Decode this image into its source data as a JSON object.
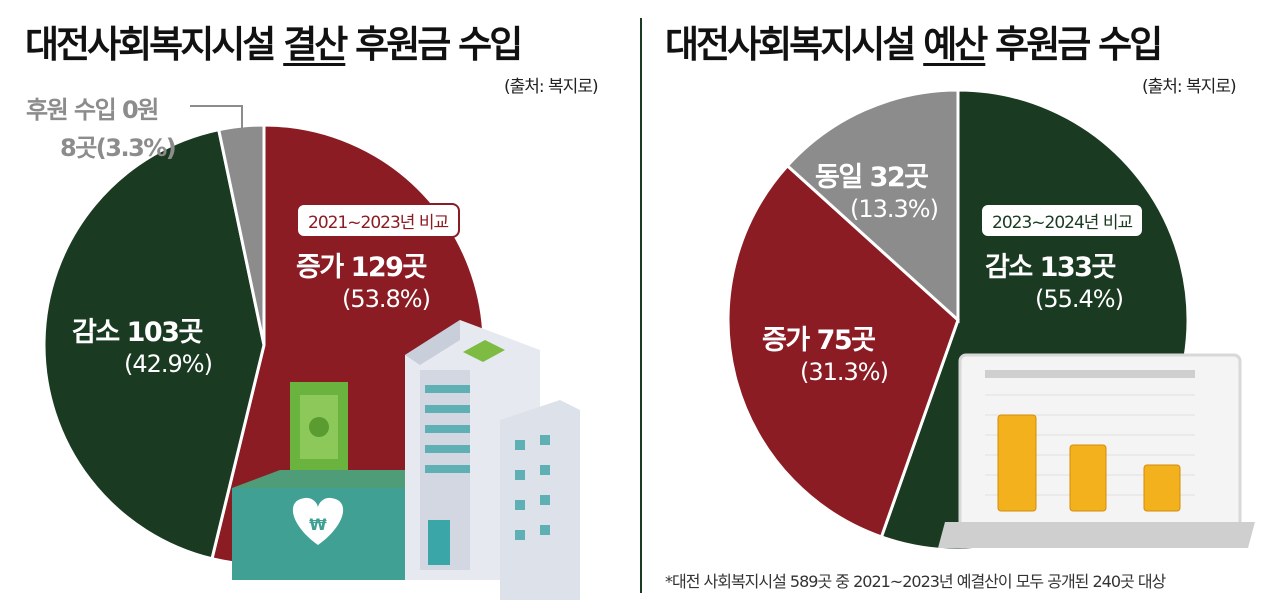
{
  "left": {
    "title_pre": "대전사회복지시설 ",
    "title_em": "결산",
    "title_post": " 후원금 수입",
    "source": "(출처: 복지로)",
    "badge": "2021~2023년 비교",
    "zero_label": "후원 수입 0원",
    "zero_count": "8곳(3.3%)"
  },
  "right": {
    "title_pre": "대전사회복지시설 ",
    "title_em": "예산",
    "title_post": " 후원금 수입",
    "source": "(출처: 복지로)",
    "badge": "2023~2024년 비교"
  },
  "footnote": "*대전 사회복지시설 589곳 중 2021~2023년 예결산이 모두 공개된 240곳 대상",
  "chart_data": [
    {
      "type": "pie",
      "title": "대전사회복지시설 결산 후원금 수입",
      "subtitle": "2021~2023년 비교",
      "slices": [
        {
          "label": "증가 129곳",
          "count": 129,
          "pct_text": "(53.8%)",
          "value": 53.8,
          "color": "#8b1c24"
        },
        {
          "label": "감소 103곳",
          "count": 103,
          "pct_text": "(42.9%)",
          "value": 42.9,
          "color": "#1a3a22"
        },
        {
          "label": "후원 수입 0원 8곳",
          "count": 8,
          "pct_text": "(3.3%)",
          "value": 3.3,
          "color": "#8c8c8c"
        }
      ]
    },
    {
      "type": "pie",
      "title": "대전사회복지시설 예산 후원금 수입",
      "subtitle": "2023~2024년 비교",
      "slices": [
        {
          "label": "감소 133곳",
          "count": 133,
          "pct_text": "(55.4%)",
          "value": 55.4,
          "color": "#1a3a22"
        },
        {
          "label": "증가 75곳",
          "count": 75,
          "pct_text": "(31.3%)",
          "value": 31.3,
          "color": "#8b1c24"
        },
        {
          "label": "동일 32곳",
          "count": 32,
          "pct_text": "(13.3%)",
          "value": 13.3,
          "color": "#8c8c8c"
        }
      ]
    }
  ]
}
